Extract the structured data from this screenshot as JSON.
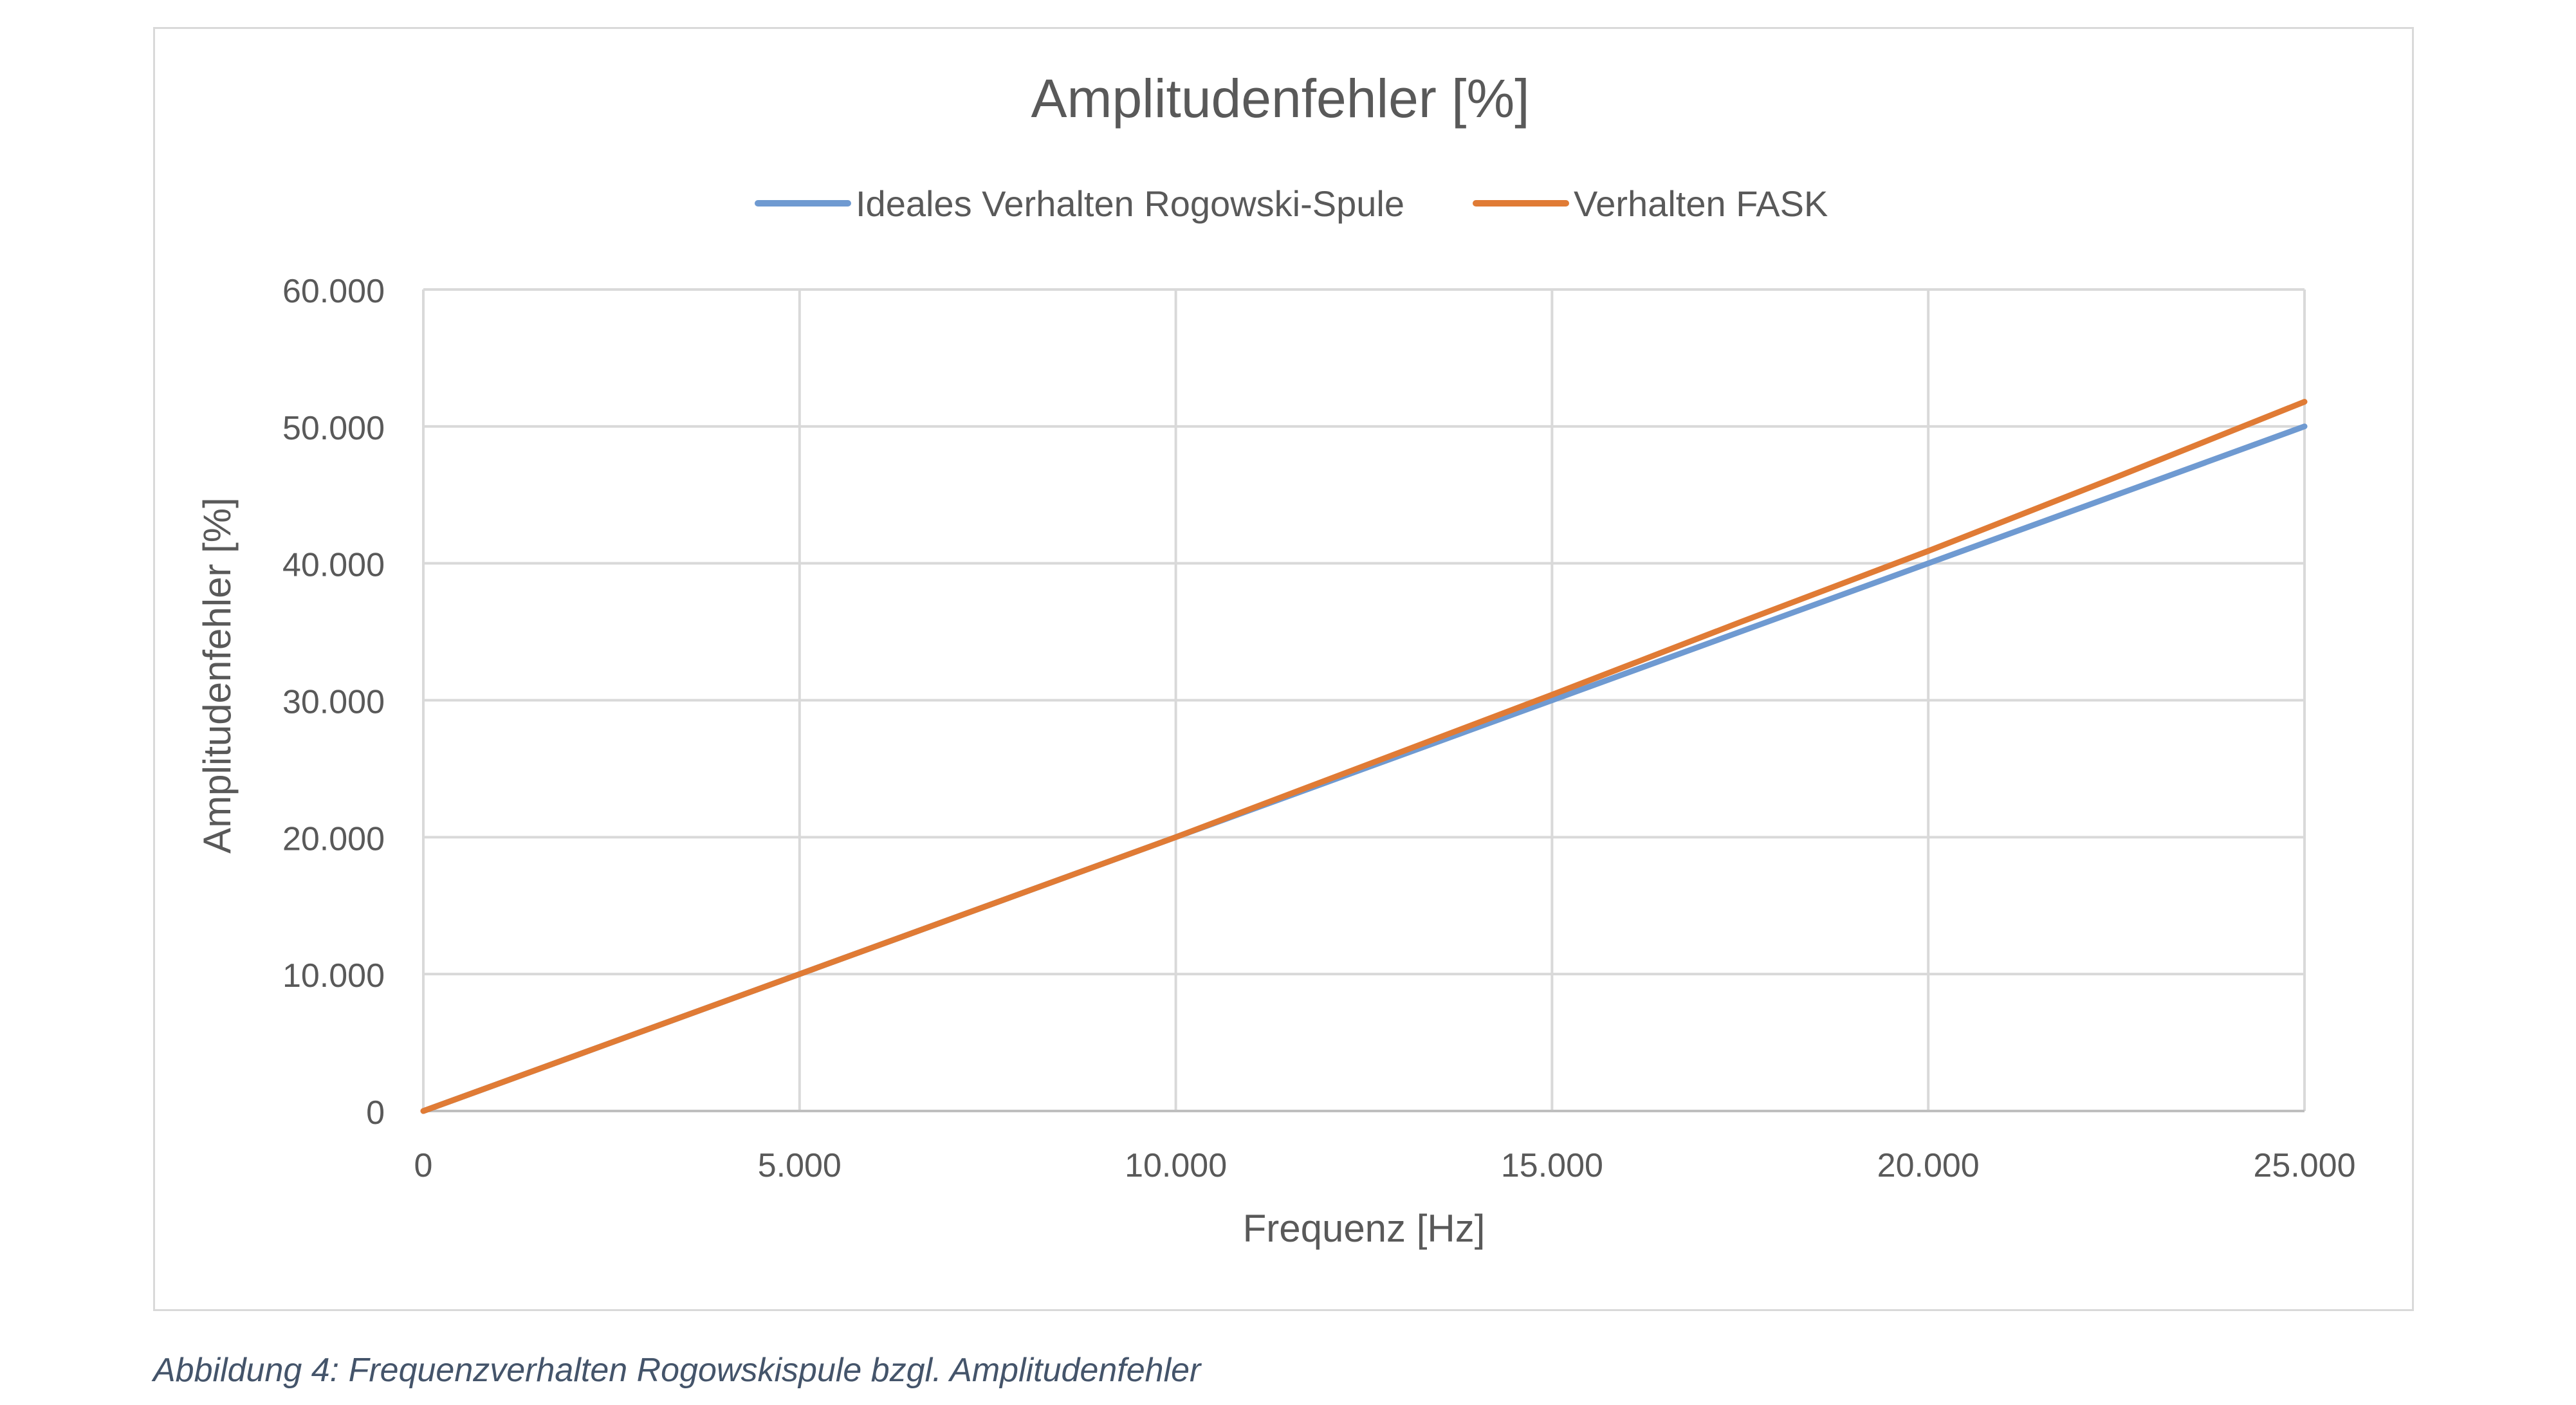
{
  "caption": "Abbildung 4: Frequenzverhalten Rogowskispule bzgl. Amplitudenfehler",
  "chart_data": {
    "type": "line",
    "title": "Amplitudenfehler [%]",
    "xlabel": "Frequenz [Hz]",
    "ylabel": "Amplitudenfehler [%]",
    "xlim": [
      0,
      25000
    ],
    "ylim": [
      0,
      60000
    ],
    "xticks": [
      0,
      5000,
      10000,
      15000,
      20000,
      25000
    ],
    "xtick_labels": [
      "0",
      "5.000",
      "10.000",
      "15.000",
      "20.000",
      "25.000"
    ],
    "yticks": [
      0,
      10000,
      20000,
      30000,
      40000,
      50000,
      60000
    ],
    "ytick_labels": [
      "0",
      "10.000",
      "20.000",
      "30.000",
      "40.000",
      "50.000",
      "60.000"
    ],
    "grid": true,
    "legend_position": "top-center",
    "series": [
      {
        "name": "Ideales Verhalten Rogowski-Spule",
        "color": "#6f9ad1",
        "x": [
          0,
          2500,
          5000,
          7500,
          10000,
          12500,
          15000,
          17500,
          20000,
          22500,
          25000
        ],
        "y": [
          0,
          5000,
          10000,
          15000,
          20000,
          25000,
          30000,
          35000,
          40000,
          45000,
          50000
        ]
      },
      {
        "name": "Verhalten FASK",
        "color": "#e07b35",
        "x": [
          0,
          2500,
          5000,
          7500,
          10000,
          12500,
          15000,
          17500,
          20000,
          22500,
          25000
        ],
        "y": [
          0,
          5000,
          10000,
          15000,
          20000,
          25200,
          30400,
          35700,
          40900,
          46300,
          51800
        ]
      }
    ]
  }
}
